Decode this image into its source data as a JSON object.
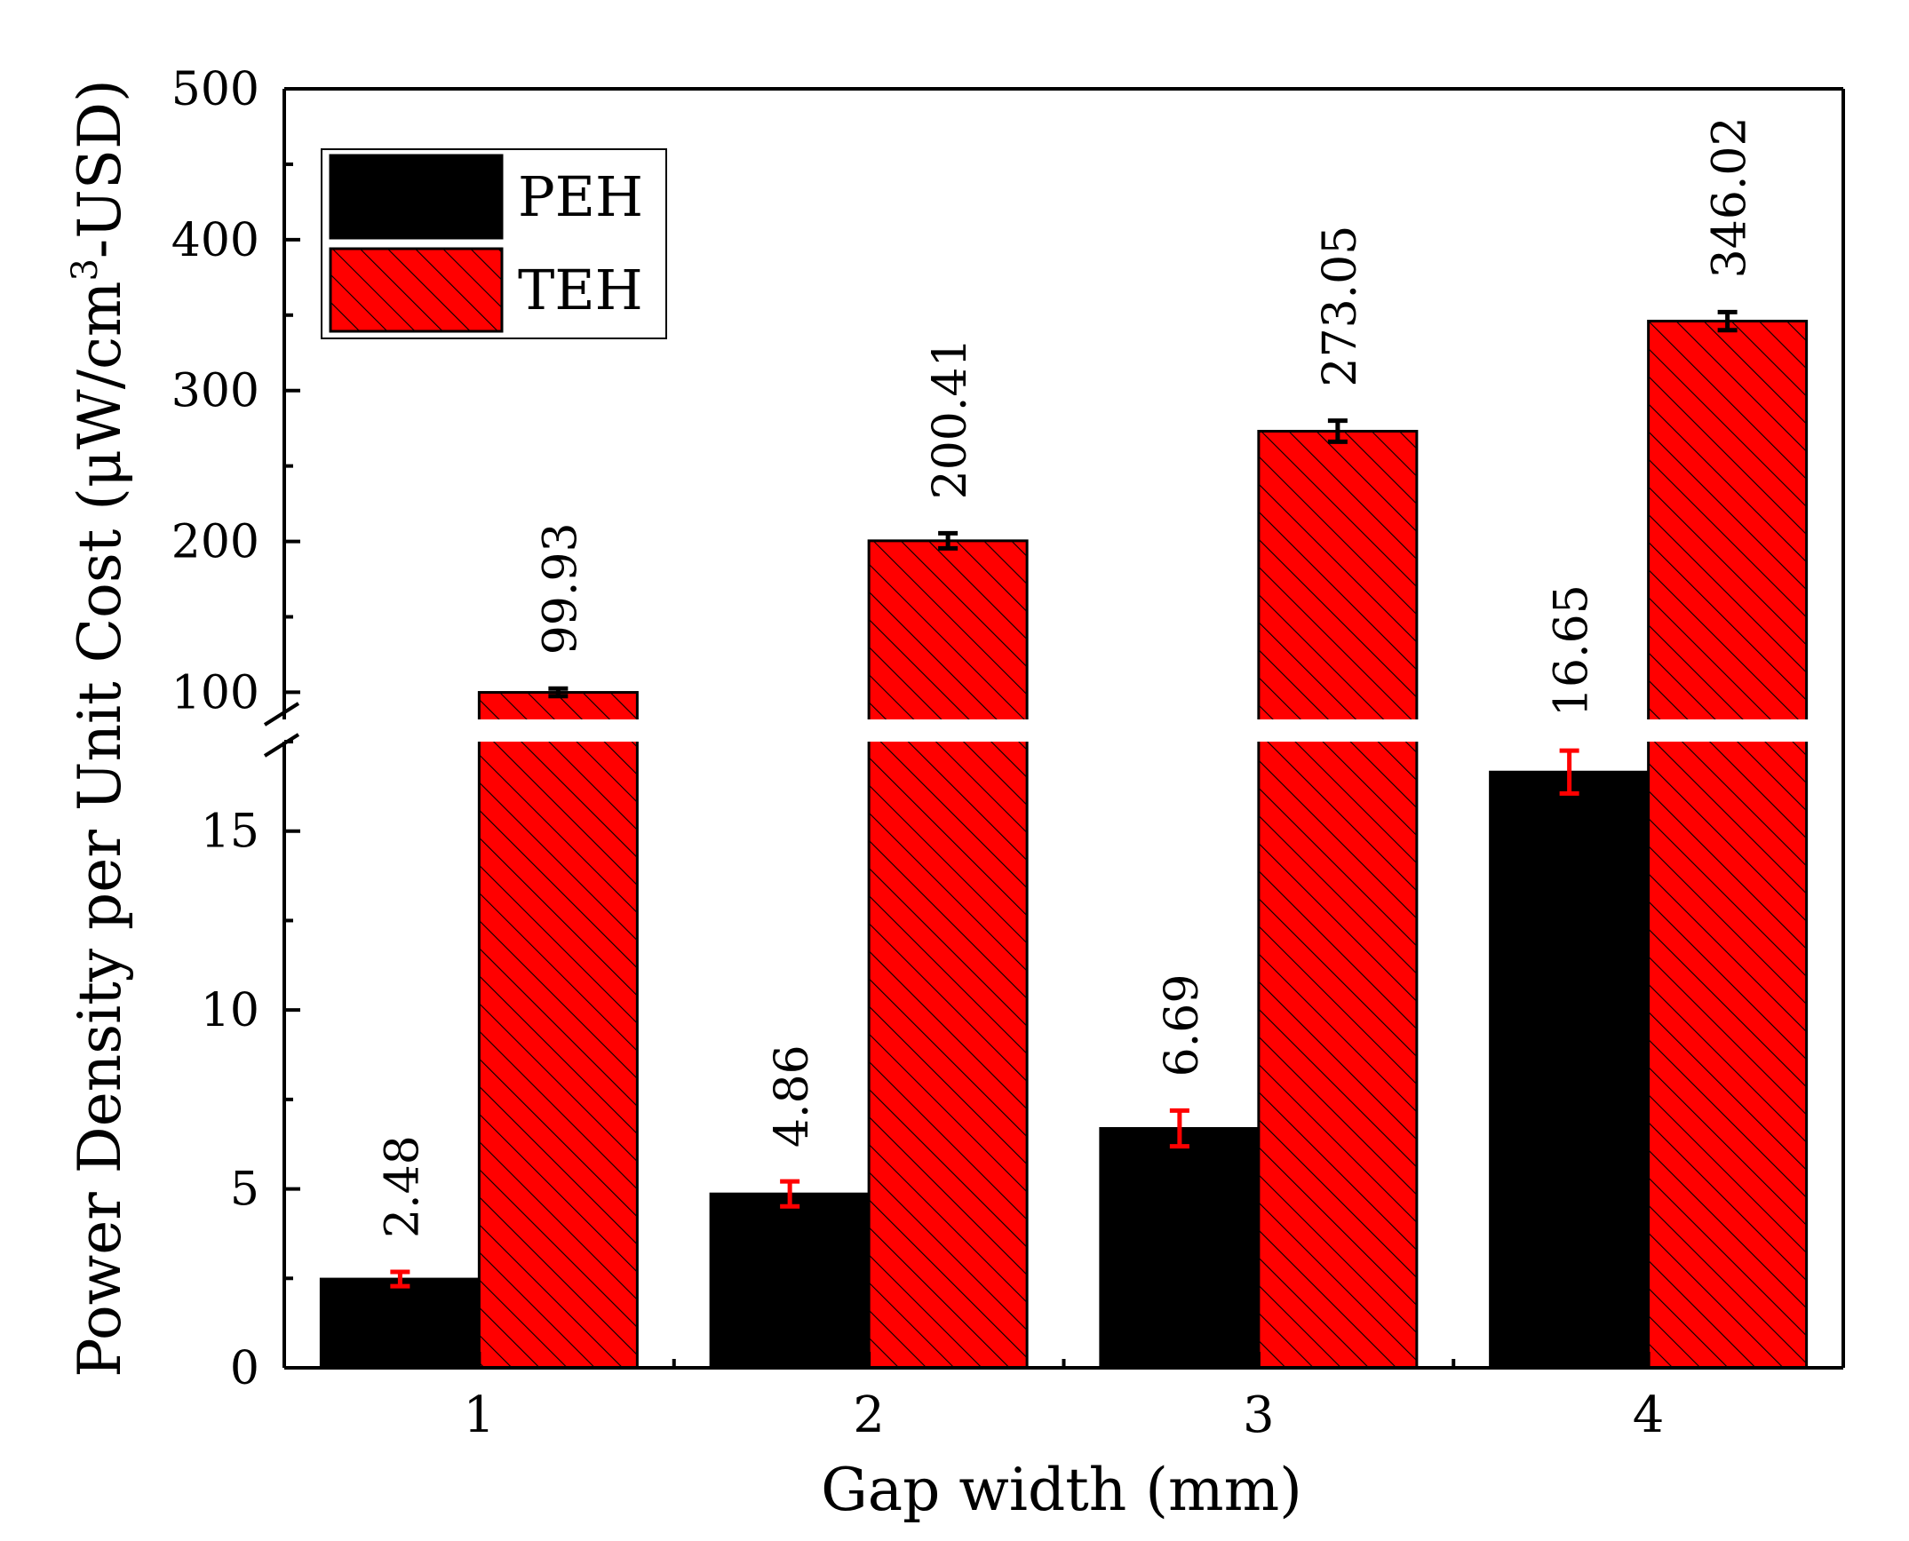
{
  "chart_data": {
    "type": "bar",
    "title": "",
    "xlabel": "Gap width (mm)",
    "ylabel_main": "Power Density per Unit Cost (μW/cm",
    "ylabel_sup": "3",
    "ylabel_tail": "-USD)",
    "categories": [
      "1",
      "2",
      "3",
      "4"
    ],
    "series": [
      {
        "name": "PEH",
        "values": [
          2.48,
          4.86,
          6.69,
          16.65
        ],
        "errors": [
          0.2,
          0.35,
          0.5,
          0.6
        ],
        "labels": [
          "2.48",
          "4.86",
          "6.69",
          "16.65"
        ],
        "color": "#000000",
        "error_color": "#ff0000",
        "hatched": false
      },
      {
        "name": "TEH",
        "values": [
          99.93,
          200.41,
          273.05,
          346.02
        ],
        "errors": [
          2.5,
          5,
          7,
          6
        ],
        "labels": [
          "99.93",
          "200.41",
          "273.05",
          "346.02"
        ],
        "color": "#ff0000",
        "error_color": "#000000",
        "hatched": true
      }
    ],
    "axis_break": {
      "lower": {
        "min": 0,
        "max": 17.5,
        "ticks": [
          0,
          5,
          10,
          15
        ],
        "tick_labels": [
          "0",
          "5",
          "10",
          "15"
        ]
      },
      "upper": {
        "min": 82,
        "max": 500,
        "ticks": [
          100,
          200,
          300,
          400,
          500
        ],
        "tick_labels": [
          "100",
          "200",
          "300",
          "400",
          "500"
        ]
      }
    },
    "legend_position": "top-left",
    "grid": false
  }
}
